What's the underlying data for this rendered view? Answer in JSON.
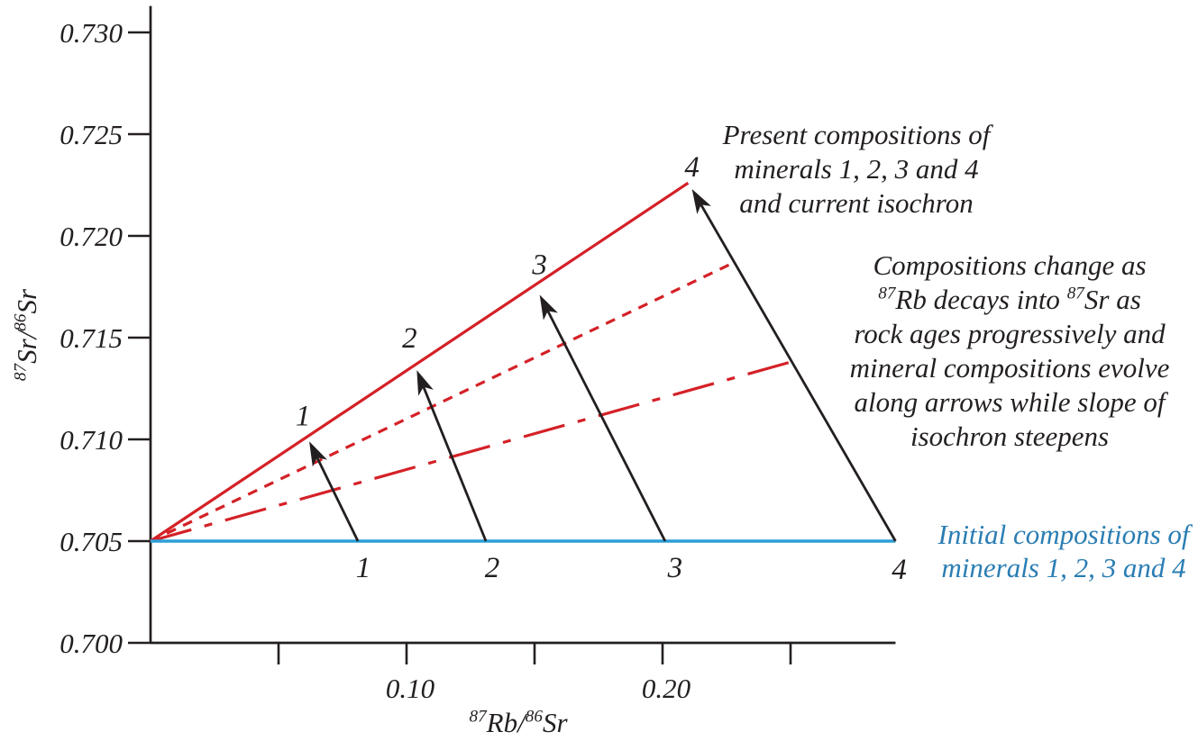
{
  "chart_data": {
    "type": "line",
    "xlabel": "87Rb/86Sr",
    "ylabel": "87Sr/86Sr",
    "x_title_parts": [
      {
        "sup": "87"
      },
      {
        "t": "Rb/"
      },
      {
        "sup": "86"
      },
      {
        "t": "Sr"
      }
    ],
    "y_title_parts": [
      {
        "sup": "87"
      },
      {
        "t": "Sr/"
      },
      {
        "sup": "86"
      },
      {
        "t": "Sr"
      }
    ],
    "grid": false,
    "x_axis": {
      "min": 0,
      "max": 0.291,
      "ticks": [
        {
          "v": 0.05,
          "label": ""
        },
        {
          "v": 0.1,
          "label": "0.10"
        },
        {
          "v": 0.15,
          "label": ""
        },
        {
          "v": 0.2,
          "label": "0.20"
        },
        {
          "v": 0.25,
          "label": ""
        }
      ]
    },
    "y_axis": {
      "min": 0.7,
      "max": 0.7313,
      "ticks": [
        {
          "v": 0.7,
          "label": "0.700"
        },
        {
          "v": 0.705,
          "label": "0.705"
        },
        {
          "v": 0.71,
          "label": "0.710"
        },
        {
          "v": 0.715,
          "label": "0.715"
        },
        {
          "v": 0.72,
          "label": "0.720"
        },
        {
          "v": 0.725,
          "label": "0.725"
        },
        {
          "v": 0.73,
          "label": "0.730"
        }
      ]
    },
    "initial_line": {
      "y": 0.705,
      "x_start": 0,
      "x_end": 0.291,
      "style": "solid"
    },
    "isochrons": [
      {
        "name": "early-isochron",
        "style": "dashdot",
        "x_start": 0,
        "y_start": 0.705,
        "x_end": 0.25,
        "y_end": 0.7138
      },
      {
        "name": "intermediate-isochron",
        "style": "dashed",
        "x_start": 0,
        "y_start": 0.705,
        "x_end": 0.228,
        "y_end": 0.7187
      },
      {
        "name": "current-isochron",
        "style": "solid",
        "x_start": 0,
        "y_start": 0.705,
        "x_end": 0.21,
        "y_end": 0.7226
      }
    ],
    "minerals": [
      {
        "id": "1",
        "initial": {
          "x": 0.081,
          "y": 0.705
        },
        "present": {
          "x": 0.062,
          "y": 0.7099
        }
      },
      {
        "id": "2",
        "initial": {
          "x": 0.131,
          "y": 0.705
        },
        "present": {
          "x": 0.104,
          "y": 0.7134
        }
      },
      {
        "id": "3",
        "initial": {
          "x": 0.201,
          "y": 0.705
        },
        "present": {
          "x": 0.152,
          "y": 0.7171
        }
      },
      {
        "id": "4",
        "initial": {
          "x": 0.291,
          "y": 0.705
        },
        "present": {
          "x": 0.2115,
          "y": 0.7223
        }
      }
    ],
    "annotations": {
      "present_note": {
        "lines": [
          "Present compositions of",
          "minerals 1, 2, 3 and 4",
          "and current isochron"
        ]
      },
      "change_note": {
        "lines_rich": [
          [
            {
              "t": "Compositions change as"
            }
          ],
          [
            {
              "sup": "87"
            },
            {
              "t": "Rb decays into "
            },
            {
              "sup": "87"
            },
            {
              "t": "Sr as"
            }
          ],
          [
            {
              "t": "rock ages progressively and"
            }
          ],
          [
            {
              "t": "mineral compositions evolve"
            }
          ],
          [
            {
              "t": "along arrows while slope of"
            }
          ],
          [
            {
              "t": "isochron steepens"
            }
          ]
        ]
      },
      "initial_note": {
        "lines": [
          "Initial compositions of",
          "minerals 1, 2, 3 and 4"
        ],
        "color": "#2a7db3"
      }
    },
    "colors": {
      "isochron_red": "#d42127",
      "initial_blue": "#2d9fd7",
      "annotation_blue": "#2a7db3",
      "ink": "#231f20"
    }
  }
}
